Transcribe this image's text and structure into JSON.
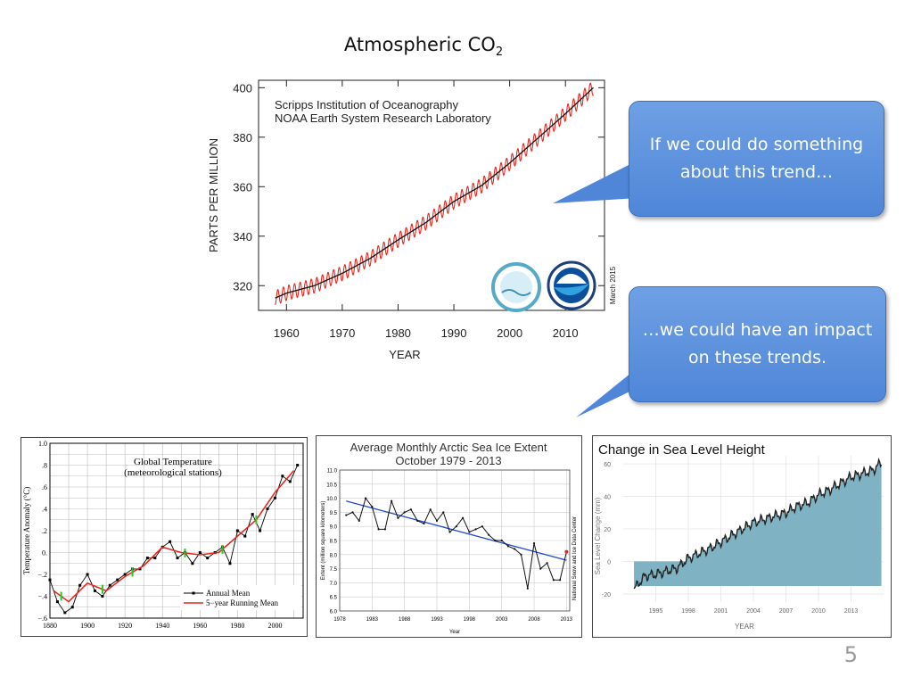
{
  "slide": {
    "title_main": "Atmospheric CO",
    "title_sub": "2",
    "page_number": "5",
    "callout_1": "If we could do something about this trend…",
    "callout_2": "…we could have an impact on these trends."
  },
  "colors": {
    "red": "#e8261f",
    "black": "#111111",
    "callout": "#5b8fdc",
    "blue_trend": "#2148d6",
    "sea_fill": "#7fb2c2",
    "green": "#22cc22"
  },
  "chart_data": [
    {
      "id": "co2",
      "type": "line",
      "source_line1": "Scripps Institution of Oceanography",
      "source_line2": "NOAA Earth System Research Laboratory",
      "xlabel": "YEAR",
      "ylabel": "PARTS PER MILLION",
      "date_note": "March 2015",
      "xlim": [
        1955,
        2017
      ],
      "ylim": [
        310,
        403
      ],
      "xticks": [
        1960,
        1970,
        1980,
        1990,
        2000,
        2010
      ],
      "yticks": [
        320,
        340,
        360,
        380,
        400
      ],
      "series": [
        {
          "style": "trend",
          "x": [
            1958,
            1960,
            1965,
            1970,
            1975,
            1980,
            1985,
            1990,
            1995,
            2000,
            2005,
            2010,
            2015
          ],
          "y": [
            315,
            317,
            320,
            325,
            331,
            338.5,
            345.5,
            354,
            360.5,
            369.5,
            379.5,
            389.5,
            400
          ]
        },
        {
          "style": "monthly",
          "seasonal_amplitude": 3
        }
      ]
    },
    {
      "id": "global_temperature",
      "type": "line",
      "title_line1": "Global Temperature",
      "title_line2": "(meteorological stations)",
      "ylabel": "Temperature Anomaly (°C)",
      "xlim": [
        1880,
        2015
      ],
      "ylim": [
        -0.6,
        1.0
      ],
      "xticks": [
        "1880",
        "1900",
        "1920",
        "1940",
        "1960",
        "1980",
        "2000"
      ],
      "yticks": [
        "−.6",
        "−.4",
        "−.2",
        "0.",
        ".2",
        ".4",
        ".6",
        ".8",
        "1.0"
      ],
      "ytick_values": [
        -0.6,
        -0.4,
        -0.2,
        0,
        0.2,
        0.4,
        0.6,
        0.8,
        1.0
      ],
      "legend": [
        "Annual Mean",
        "5−year Running Mean"
      ],
      "series": [
        {
          "name": "Annual Mean",
          "x": [
            1880,
            1884,
            1888,
            1892,
            1896,
            1900,
            1904,
            1908,
            1912,
            1916,
            1920,
            1924,
            1928,
            1932,
            1936,
            1940,
            1944,
            1948,
            1952,
            1956,
            1960,
            1964,
            1968,
            1972,
            1976,
            1980,
            1984,
            1988,
            1992,
            1996,
            2000,
            2004,
            2008,
            2012
          ],
          "y": [
            -0.25,
            -0.45,
            -0.55,
            -0.5,
            -0.3,
            -0.2,
            -0.35,
            -0.4,
            -0.3,
            -0.25,
            -0.2,
            -0.15,
            -0.15,
            -0.05,
            -0.05,
            0.05,
            0.1,
            -0.05,
            0.0,
            -0.1,
            0.0,
            -0.05,
            0.0,
            0.05,
            -0.1,
            0.2,
            0.15,
            0.35,
            0.2,
            0.4,
            0.5,
            0.7,
            0.65,
            0.8
          ]
        },
        {
          "name": "5−year Running Mean",
          "x": [
            1882,
            1890,
            1900,
            1910,
            1920,
            1930,
            1940,
            1950,
            1960,
            1970,
            1980,
            1990,
            2000,
            2010
          ],
          "y": [
            -0.35,
            -0.45,
            -0.28,
            -0.35,
            -0.22,
            -0.12,
            0.05,
            0.0,
            -0.02,
            0.0,
            0.15,
            0.3,
            0.55,
            0.75
          ]
        }
      ]
    },
    {
      "id": "arctic_sea_ice",
      "type": "line",
      "title_line1": "Average Monthly Arctic Sea Ice Extent",
      "title_line2": "October 1979 - 2013",
      "xlabel": "Year",
      "ylabel": "Extent (million square kilometers)",
      "side_label": "National Snow and Ice Data Center",
      "xlim": [
        1978,
        2013.5
      ],
      "ylim": [
        6.0,
        11.0
      ],
      "xticks": [
        "1978",
        "1983",
        "1988",
        "1993",
        "1998",
        "2003",
        "2008",
        "2013"
      ],
      "yticks": [
        "6.0",
        "6.5",
        "7.0",
        "7.5",
        "8.0",
        "8.5",
        "9.0",
        "9.5",
        "10.0",
        "10.5",
        "11.0"
      ],
      "x": [
        1979,
        1980,
        1981,
        1982,
        1983,
        1984,
        1985,
        1986,
        1987,
        1988,
        1989,
        1990,
        1991,
        1992,
        1993,
        1994,
        1995,
        1996,
        1997,
        1998,
        1999,
        2000,
        2001,
        2002,
        2003,
        2004,
        2005,
        2006,
        2007,
        2008,
        2009,
        2010,
        2011,
        2012,
        2013
      ],
      "values": [
        9.4,
        9.5,
        9.2,
        10.0,
        9.7,
        8.9,
        8.9,
        9.9,
        9.3,
        9.5,
        9.6,
        9.2,
        9.1,
        9.6,
        9.2,
        9.5,
        8.8,
        9.0,
        9.3,
        8.8,
        8.9,
        9.0,
        8.7,
        8.5,
        8.5,
        8.3,
        8.2,
        8.0,
        6.8,
        8.4,
        7.5,
        7.7,
        7.1,
        7.1,
        8.1
      ],
      "trend": {
        "x": [
          1979,
          2013
        ],
        "y": [
          9.9,
          7.8
        ]
      }
    },
    {
      "id": "sea_level",
      "type": "area",
      "title": "Change in Sea Level Height",
      "xlabel": "YEAR",
      "ylabel": "Sea Level Change (mm)",
      "xlim": [
        1992,
        2016
      ],
      "ylim": [
        -25,
        65
      ],
      "xticks": [
        "1995",
        "1998",
        "2001",
        "2004",
        "2007",
        "2010",
        "2013"
      ],
      "yticks": [
        "-20",
        "0",
        "20",
        "40",
        "60"
      ],
      "x": [
        1993,
        1994,
        1995,
        1996,
        1997,
        1998,
        1999,
        2000,
        2001,
        2002,
        2003,
        2004,
        2005,
        2006,
        2007,
        2008,
        2009,
        2010,
        2011,
        2012,
        2013,
        2014,
        2015,
        2015.8
      ],
      "values": [
        -17,
        -9,
        -8,
        -6,
        -4,
        2,
        5,
        8,
        12,
        16,
        20,
        24,
        26,
        28,
        30,
        34,
        36,
        41,
        44,
        48,
        52,
        54,
        56,
        61
      ]
    }
  ]
}
